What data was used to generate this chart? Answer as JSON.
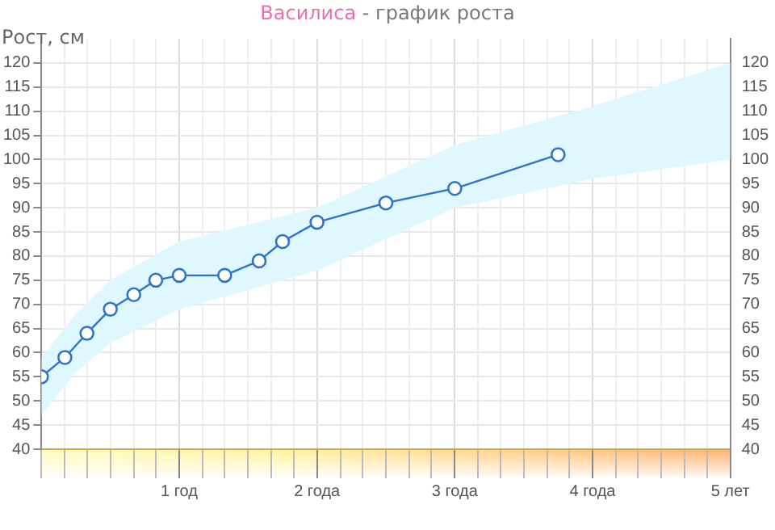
{
  "chart_data": {
    "type": "line",
    "title": "Василиса",
    "subtitle": "- график роста",
    "ylabel": "Рост, см",
    "xlim": [
      0,
      5
    ],
    "xticks": [
      {
        "value": 0,
        "label": null
      },
      {
        "value": 0.17,
        "label": null
      },
      {
        "value": 0.33,
        "label": null
      },
      {
        "value": 0.5,
        "label": null
      },
      {
        "value": 0.67,
        "label": null
      },
      {
        "value": 0.83,
        "label": null
      },
      {
        "value": 1,
        "label": "1 год"
      },
      {
        "value": 1.17,
        "label": null
      },
      {
        "value": 1.33,
        "label": null
      },
      {
        "value": 1.5,
        "label": null
      },
      {
        "value": 1.67,
        "label": null
      },
      {
        "value": 1.83,
        "label": null
      },
      {
        "value": 2,
        "label": "2 года"
      },
      {
        "value": 2.17,
        "label": null
      },
      {
        "value": 2.33,
        "label": null
      },
      {
        "value": 2.5,
        "label": null
      },
      {
        "value": 2.67,
        "label": null
      },
      {
        "value": 2.83,
        "label": null
      },
      {
        "value": 3,
        "label": "3 года"
      },
      {
        "value": 3.17,
        "label": null
      },
      {
        "value": 3.33,
        "label": null
      },
      {
        "value": 3.5,
        "label": null
      },
      {
        "value": 3.67,
        "label": null
      },
      {
        "value": 3.83,
        "label": null
      },
      {
        "value": 4,
        "label": "4 года"
      },
      {
        "value": 4.17,
        "label": null
      },
      {
        "value": 4.33,
        "label": null
      },
      {
        "value": 4.5,
        "label": null
      },
      {
        "value": 4.67,
        "label": null
      },
      {
        "value": 4.83,
        "label": null
      },
      {
        "value": 5,
        "label": "5 лет"
      }
    ],
    "ylim": [
      40,
      125
    ],
    "yticks": [
      40,
      45,
      50,
      55,
      60,
      65,
      70,
      75,
      80,
      85,
      90,
      95,
      100,
      105,
      110,
      115,
      120
    ],
    "y2lim": [
      40,
      125
    ],
    "y2ticks": [
      40,
      45,
      50,
      55,
      60,
      65,
      70,
      75,
      80,
      85,
      90,
      95,
      100,
      105,
      110,
      115,
      120
    ],
    "grid": true,
    "legend": false,
    "marker": "circle",
    "line_style": "solid",
    "series": [
      {
        "type": "area",
        "color": "#dff7ff",
        "x": [
          0,
          0.25,
          0.5,
          1,
          2,
          3,
          4,
          5
        ],
        "values": [
          null,
          null,
          null,
          null,
          null,
          null,
          null,
          null
        ],
        "lower": [
          47,
          56,
          62,
          69,
          77,
          90,
          96,
          100
        ],
        "upper": [
          59,
          68,
          75,
          83,
          90,
          103,
          111,
          120
        ]
      },
      {
        "color": "#2f74cc",
        "x": [
          0,
          0.17,
          0.33,
          0.5,
          0.67,
          0.83,
          1,
          1.33,
          1.58,
          1.75,
          2,
          2.5,
          3,
          3.75
        ],
        "values": [
          55,
          59,
          64,
          69,
          72,
          75,
          76,
          76,
          79,
          83,
          87,
          91,
          94,
          101
        ]
      }
    ]
  }
}
